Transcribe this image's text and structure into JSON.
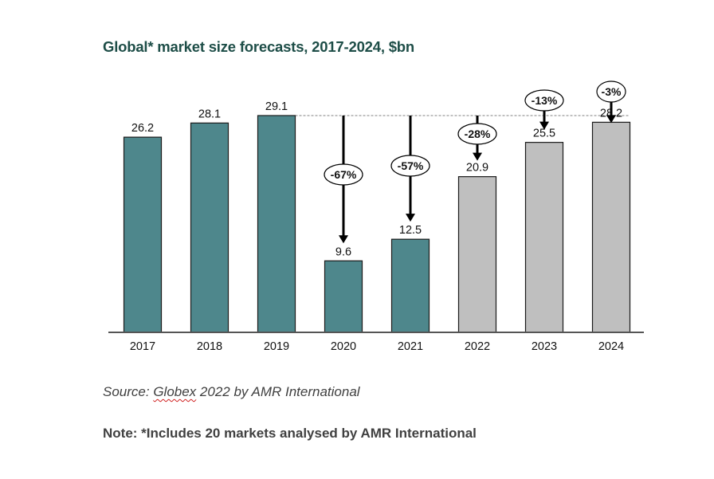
{
  "chart_data": {
    "type": "bar",
    "title": "Global* market size forecasts, 2017-2024, $bn",
    "xlabel": "",
    "ylabel": "",
    "ylim": [
      0,
      29.1
    ],
    "grid": false,
    "categories": [
      "2017",
      "2018",
      "2019",
      "2020",
      "2021",
      "2022",
      "2023",
      "2024"
    ],
    "values": [
      26.2,
      28.1,
      29.1,
      9.6,
      12.5,
      20.9,
      25.5,
      28.2
    ],
    "value_labels": [
      "26.2",
      "28.1",
      "29.1",
      "9.6",
      "12.5",
      "20.9",
      "25.5",
      "28.2"
    ],
    "series_types": [
      "actual",
      "actual",
      "actual",
      "actual",
      "actual",
      "forecast",
      "forecast",
      "forecast"
    ],
    "colors": {
      "actual": "#4e878c",
      "forecast": "#bfbfbf",
      "outline": "#1a1a1a",
      "title": "#1d4d47"
    },
    "reference_line": {
      "value": 29.1,
      "style": "dashed"
    },
    "annotations": [
      {
        "category": "2020",
        "label": "-67%"
      },
      {
        "category": "2021",
        "label": "-57%"
      },
      {
        "category": "2022",
        "label": "-28%"
      },
      {
        "category": "2023",
        "label": "-13%"
      },
      {
        "category": "2024",
        "label": "-3%"
      }
    ]
  },
  "footer": {
    "source_prefix": "Source: ",
    "source_word": "Globex",
    "source_rest": " 2022 by AMR International",
    "note": "Note: *Includes 20 markets analysed by AMR International"
  }
}
